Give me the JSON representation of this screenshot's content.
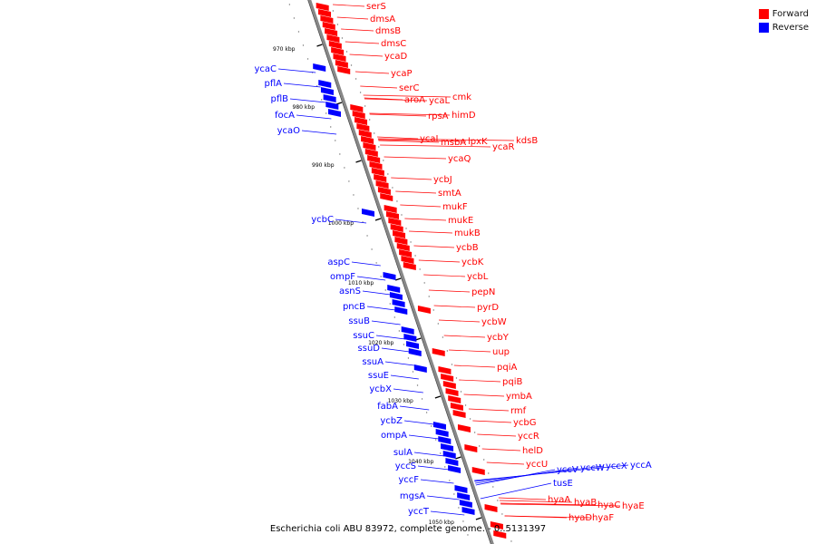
{
  "legend": {
    "forward": {
      "label": "Forward",
      "color": "#ff0000"
    },
    "reverse": {
      "label": "Reverse",
      "color": "#0000ff"
    }
  },
  "caption": "Escherichia coli ABU 83972, complete genome. - 0..5131397",
  "diagram": {
    "axis_color": "#888888",
    "tick_labels": [
      "970 kbp",
      "980 kbp",
      "990 kbp",
      "1000 kbp",
      "1010 kbp",
      "1020 kbp",
      "1030 kbp",
      "1040 kbp",
      "1050 kbp"
    ],
    "forward_genes": [
      "serS",
      "dmsA",
      "dmsB",
      "dmsC",
      "ycaD",
      "ycaP",
      "serC",
      "aroA",
      "ycaL",
      "cmk",
      "rpsA",
      "himD",
      "ycaI",
      "msbA",
      "lpxK",
      "ycaR",
      "kdsB",
      "ycaQ",
      "ycbJ",
      "smtA",
      "mukF",
      "mukE",
      "mukB",
      "ycbB",
      "ycbK",
      "ycbL",
      "pepN",
      "pyrD",
      "ycbW",
      "ycbY",
      "uup",
      "pqiA",
      "pqiB",
      "ymbA",
      "rmf",
      "ycbG",
      "yccR",
      "helD",
      "yccU",
      "hyaA",
      "hyaB",
      "hyaC",
      "hyaE",
      "hyaD",
      "hyaF"
    ],
    "reverse_genes": [
      "ycaC",
      "pflA",
      "pflB",
      "focA",
      "ycaO",
      "ycbC",
      "aspC",
      "ompF",
      "asnS",
      "pncB",
      "ssuB",
      "ssuC",
      "ssuD",
      "ssuA",
      "ssuE",
      "ycbX",
      "fabA",
      "ycbZ",
      "ompA",
      "sulA",
      "yccS",
      "yccF",
      "mgsA",
      "yccT",
      "yccV",
      "yccW",
      "yccX",
      "yccA",
      "tusE"
    ]
  }
}
